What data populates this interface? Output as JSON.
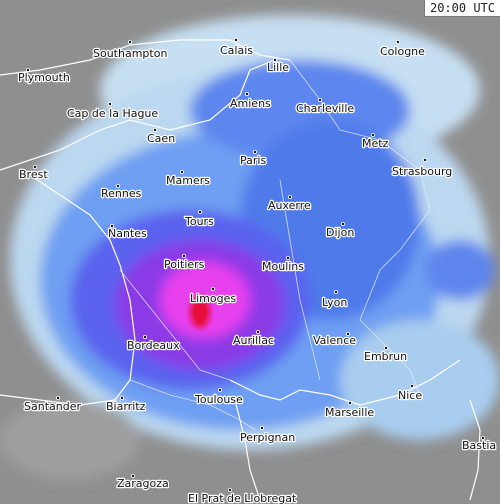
{
  "timestamp": "20:00 UTC",
  "cities": [
    "Southampton",
    "Calais",
    "Cologne",
    "Plymouth",
    "Lille",
    "Amiens",
    "Charleville",
    "Cap de la Hague",
    "Caen",
    "Metz",
    "Paris",
    "Brest",
    "Mamers",
    "Strasbourg",
    "Rennes",
    "Auxerre",
    "Tours",
    "Nantes",
    "Dijon",
    "Poitiers",
    "Moulins",
    "Limoges",
    "Lyon",
    "Aurillac",
    "Valence",
    "Bordeaux",
    "Embrun",
    "Nice",
    "Toulouse",
    "Santander",
    "Biarritz",
    "Marseille",
    "Bastia",
    "Perpignan",
    "Zaragoza",
    "El Prat de Llobregat"
  ]
}
